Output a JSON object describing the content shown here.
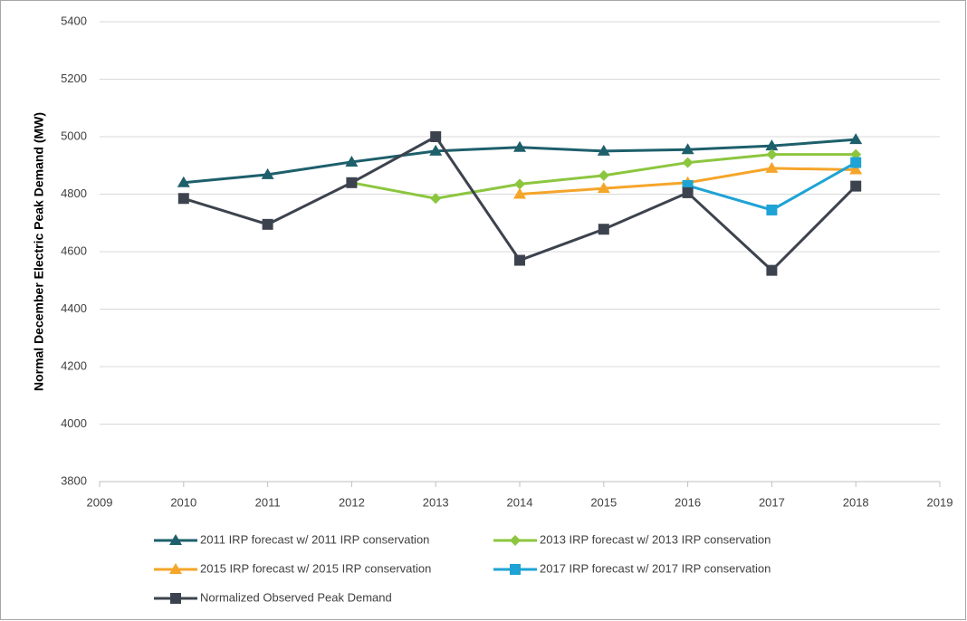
{
  "chart_data": {
    "type": "line",
    "y_label": "Normal December Electric Peak Demand (MW)",
    "x": [
      2010,
      2011,
      2012,
      2013,
      2014,
      2015,
      2016,
      2017,
      2018
    ],
    "series": [
      {
        "name": "2011 IRP forecast w/ 2011 IRP conservation",
        "color": "#1d5f6b",
        "marker": "triangle",
        "values": [
          4840,
          4868,
          4912,
          4950,
          4963,
          4950,
          4955,
          4968,
          4990
        ]
      },
      {
        "name": "2013 IRP forecast w/ 2013 IRP conservation",
        "color": "#8cc63f",
        "marker": "diamond",
        "values": [
          null,
          null,
          4840,
          4785,
          4835,
          4865,
          4910,
          4938,
          4938
        ]
      },
      {
        "name": "2015 IRP forecast w/ 2015 IRP conservation",
        "color": "#f5a52a",
        "marker": "triangle",
        "values": [
          null,
          null,
          null,
          null,
          4800,
          4820,
          4840,
          4890,
          4885
        ]
      },
      {
        "name": "2017 IRP forecast w/ 2017 IRP conservation",
        "color": "#1ea3d4",
        "marker": "square",
        "values": [
          null,
          null,
          null,
          null,
          null,
          null,
          4830,
          4745,
          4910
        ]
      },
      {
        "name": "Normalized Observed Peak Demand",
        "color": "#3d434e",
        "marker": "square",
        "values": [
          4785,
          4695,
          4840,
          5000,
          4570,
          4678,
          4805,
          4535,
          4828
        ]
      }
    ],
    "xlim": [
      2009,
      2019
    ],
    "xticks": [
      2009,
      2010,
      2011,
      2012,
      2013,
      2014,
      2015,
      2016,
      2017,
      2018,
      2019
    ],
    "ylim": [
      3800,
      5400
    ],
    "yticks": [
      3800,
      4000,
      4200,
      4400,
      4600,
      4800,
      5000,
      5200,
      5400
    ],
    "grid": true
  }
}
